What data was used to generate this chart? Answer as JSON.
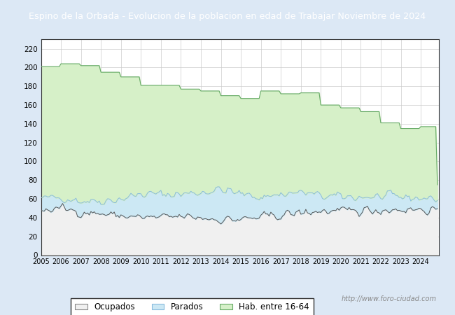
{
  "title": "Espino de la Orbada - Evolucion de la poblacion en edad de Trabajar Noviembre de 2024",
  "title_bg": "#4a86c8",
  "title_color": "white",
  "ylim": [
    0,
    230
  ],
  "yticks": [
    0,
    20,
    40,
    60,
    80,
    100,
    120,
    140,
    160,
    180,
    200,
    220
  ],
  "color_hab": "#d6f0c8",
  "color_parados": "#cce8f4",
  "color_ocupados": "#f0f0f0",
  "line_color_hab": "#66aa66",
  "line_color_parados": "#88bbdd",
  "line_color_ocupados": "#555555",
  "legend_labels": [
    "Ocupados",
    "Parados",
    "Hab. entre 16-64"
  ],
  "watermark": "http://www.foro-ciudad.com",
  "plot_bg": "#ffffff",
  "fig_bg": "#dce8f5",
  "grid_color": "#cccccc"
}
